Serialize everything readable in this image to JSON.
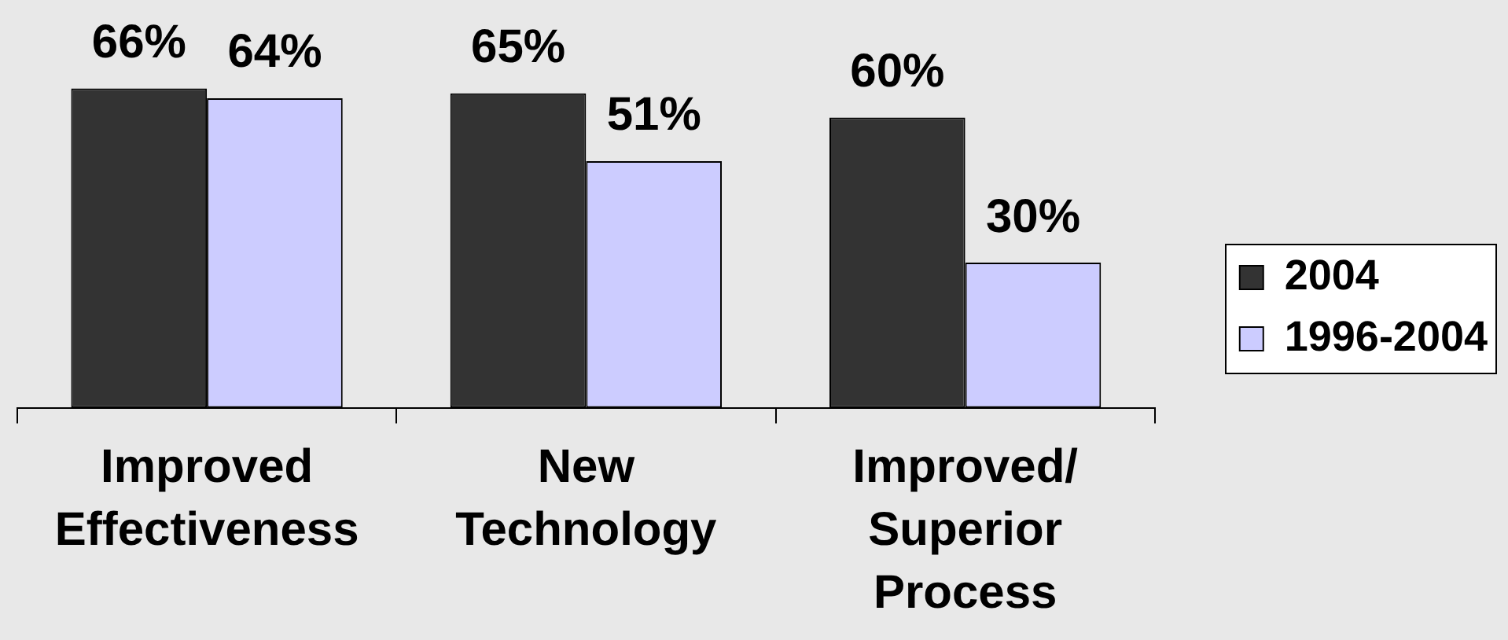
{
  "chart_data": {
    "type": "bar",
    "categories": [
      "Improved Effectiveness",
      "New Technology",
      "Improved/ Superior Process"
    ],
    "series": [
      {
        "name": "2004",
        "color": "#333333",
        "values": [
          66,
          65,
          60
        ],
        "value_labels": [
          "66%",
          "65%",
          "60%"
        ]
      },
      {
        "name": "1996-2004",
        "color": "#ccccff",
        "values": [
          64,
          51,
          30
        ],
        "value_labels": [
          "64%",
          "51%",
          "30%"
        ]
      }
    ],
    "tick_labels": "x",
    "legend": "right"
  }
}
